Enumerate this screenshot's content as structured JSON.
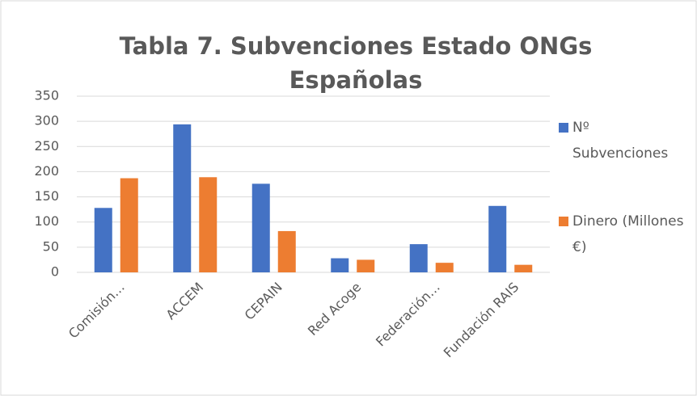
{
  "chart_data": {
    "type": "bar",
    "title": "Tabla 7. Subvenciones Estado ONGs Españolas",
    "categories": [
      "Comisión…",
      "ACCEM",
      "CEPAIN",
      "Red Acoge",
      "Federación…",
      "Fundación RAIS"
    ],
    "series": [
      {
        "name": "Nº Subvenciones",
        "color": "#4472c4",
        "values": [
          128,
          294,
          176,
          28,
          56,
          132
        ]
      },
      {
        "name": "Dinero (Millones €)",
        "color": "#ed7d31",
        "values": [
          187,
          189,
          82,
          25,
          19,
          15
        ]
      }
    ],
    "ylim": [
      0,
      350
    ],
    "yticks": [
      0,
      50,
      100,
      150,
      200,
      250,
      300,
      350
    ],
    "grid": true,
    "legend": "right"
  }
}
